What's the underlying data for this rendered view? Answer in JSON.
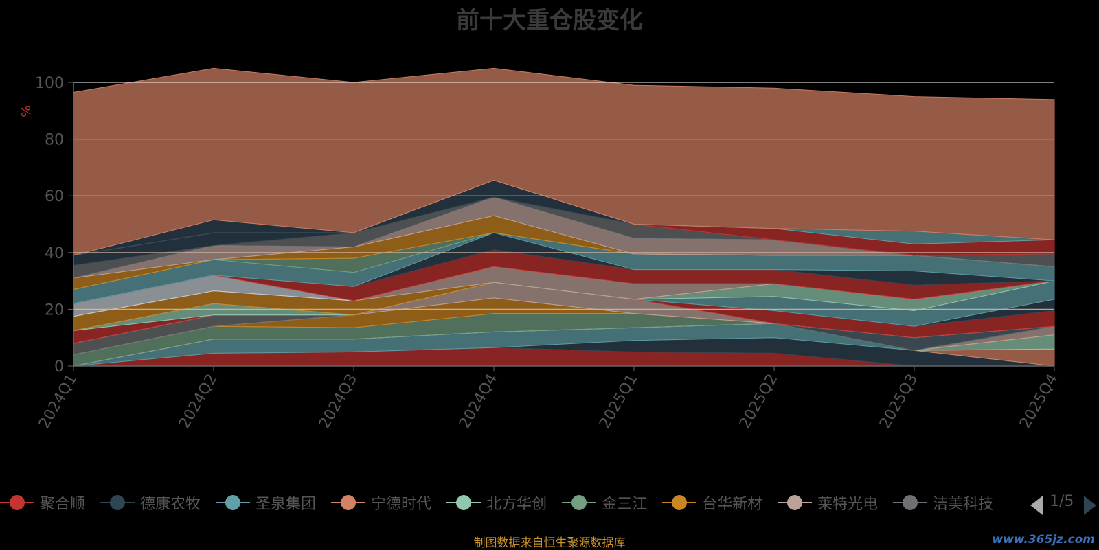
{
  "chart_data": {
    "type": "area",
    "title": "前十大重仓股变化",
    "ylabel": "%",
    "ylim": [
      0,
      100
    ],
    "y_ticks": [
      "0",
      "20",
      "40",
      "60",
      "80",
      "100"
    ],
    "categories": [
      "2024Q1",
      "2024Q2",
      "2024Q3",
      "2024Q4",
      "2025Q1",
      "2025Q2",
      "2025Q3",
      "2025Q4"
    ],
    "stacked": true,
    "grid": true,
    "legend_position": "bottom",
    "series": [
      {
        "name": "聚合顺",
        "color": "#c23531",
        "values": [
          0,
          4.5,
          5,
          6.5,
          5,
          4.5,
          0,
          0
        ]
      },
      {
        "name": "德康农牧",
        "color": "#2f4554",
        "values": [
          0,
          0,
          0,
          0,
          4,
          5.5,
          5.5,
          0
        ]
      },
      {
        "name": "圣泉集团",
        "color": "#61a0a8",
        "values": [
          0,
          5,
          4.5,
          5.5,
          4.5,
          5,
          0,
          0
        ]
      },
      {
        "name": "宁德时代",
        "color": "#d48265",
        "values": [
          0,
          0,
          0,
          0,
          0,
          0,
          0,
          6
        ]
      },
      {
        "name": "北方华创",
        "color": "#91c7ae",
        "values": [
          0,
          0,
          0,
          0,
          0,
          0,
          0,
          5
        ]
      },
      {
        "name": "金三江",
        "color": "#749f83",
        "values": [
          4,
          4.5,
          4,
          6.5,
          5,
          0,
          0,
          0
        ]
      },
      {
        "name": "台华新材",
        "color": "#ca8622",
        "values": [
          0,
          0,
          4.5,
          5.5,
          0,
          0,
          0,
          0
        ]
      },
      {
        "name": "莱特光电",
        "color": "#bda29a",
        "values": [
          0,
          0,
          0,
          5.5,
          5,
          0,
          0,
          3
        ]
      },
      {
        "name": "洁美科技",
        "color": "#6e7074",
        "values": [
          4,
          4,
          0,
          0,
          0,
          0,
          0,
          0
        ]
      },
      {
        "name": "",
        "color": "#546570",
        "values": [
          0,
          0,
          0,
          0,
          0,
          0,
          4.5,
          0
        ]
      },
      {
        "name": "",
        "color": "#c4ccd3",
        "values": [
          0,
          0,
          0,
          0,
          0,
          0,
          0,
          0
        ]
      },
      {
        "name": "",
        "color": "#c23531",
        "values": [
          4.5,
          0,
          0,
          0,
          0,
          4.5,
          4,
          5.5
        ]
      },
      {
        "name": "",
        "color": "#2f4554",
        "values": [
          0,
          0,
          0,
          0,
          0,
          0,
          0,
          4
        ]
      },
      {
        "name": "",
        "color": "#61a0a8",
        "values": [
          0,
          0,
          0,
          0,
          0,
          5,
          5.5,
          6.5
        ]
      },
      {
        "name": "",
        "color": "#91c7ae",
        "values": [
          0,
          4,
          0,
          0,
          0,
          4.5,
          4,
          0
        ]
      },
      {
        "name": "",
        "color": "#ca8622",
        "values": [
          5,
          4.5,
          5,
          0,
          0,
          0,
          0,
          0
        ]
      },
      {
        "name": "",
        "color": "#bda29a",
        "values": [
          0,
          0,
          0,
          5.5,
          5.5,
          0,
          0,
          0
        ]
      },
      {
        "name": "",
        "color": "#c4ccd3",
        "values": [
          4.5,
          5.5,
          0,
          0,
          0,
          0,
          0,
          0
        ]
      },
      {
        "name": "",
        "color": "#c23531",
        "values": [
          0,
          0,
          5,
          6,
          5,
          5,
          5,
          0
        ]
      },
      {
        "name": "",
        "color": "#2f4554",
        "values": [
          0,
          0,
          0,
          6,
          0,
          0,
          5,
          0
        ]
      },
      {
        "name": "",
        "color": "#61a0a8",
        "values": [
          5,
          5.5,
          5,
          0,
          5.5,
          5,
          5.5,
          5
        ]
      },
      {
        "name": "",
        "color": "#749f83",
        "values": [
          0,
          0,
          5,
          0,
          0,
          0,
          0,
          0
        ]
      },
      {
        "name": "",
        "color": "#ca8622",
        "values": [
          4,
          0,
          4,
          6,
          0,
          0,
          0,
          0
        ]
      },
      {
        "name": "",
        "color": "#bda29a",
        "values": [
          0,
          5,
          0,
          6.5,
          5.5,
          5.5,
          0,
          0
        ]
      },
      {
        "name": "",
        "color": "#6e7074",
        "values": [
          4.5,
          0,
          5,
          0,
          5,
          0,
          0,
          4.5
        ]
      },
      {
        "name": "",
        "color": "#2f4554",
        "values": [
          3.5,
          4.5,
          0,
          6,
          0,
          0,
          0,
          0
        ]
      },
      {
        "name": "",
        "color": "#c23531",
        "values": [
          0,
          0,
          0,
          0,
          0,
          4,
          4,
          5
        ]
      },
      {
        "name": "",
        "color": "#61a0a8",
        "values": [
          0,
          0,
          0,
          0,
          0,
          0,
          4.5,
          0
        ]
      },
      {
        "name": "",
        "color": "#2f4554",
        "values": [
          0,
          4.5,
          0,
          0,
          0,
          0,
          0,
          0
        ]
      },
      {
        "name": "",
        "color": "#d48265",
        "values": [
          57.5,
          53.5,
          53,
          39.5,
          49,
          49.5,
          47.5,
          49.5
        ]
      }
    ]
  },
  "legend": {
    "items": [
      {
        "label": "聚合顺",
        "color": "#c23531"
      },
      {
        "label": "德康农牧",
        "color": "#2f4554"
      },
      {
        "label": "圣泉集团",
        "color": "#61a0a8"
      },
      {
        "label": "宁德时代",
        "color": "#d48265"
      },
      {
        "label": "北方华创",
        "color": "#91c7ae"
      },
      {
        "label": "金三江",
        "color": "#749f83"
      },
      {
        "label": "台华新材",
        "color": "#ca8622"
      },
      {
        "label": "莱特光电",
        "color": "#bda29a"
      },
      {
        "label": "洁美科技",
        "color": "#6e7074"
      }
    ],
    "page_text": "1/5"
  },
  "footer": {
    "source": "制图数据来自恒生聚源数据库",
    "watermark": "www.365jz.com"
  }
}
